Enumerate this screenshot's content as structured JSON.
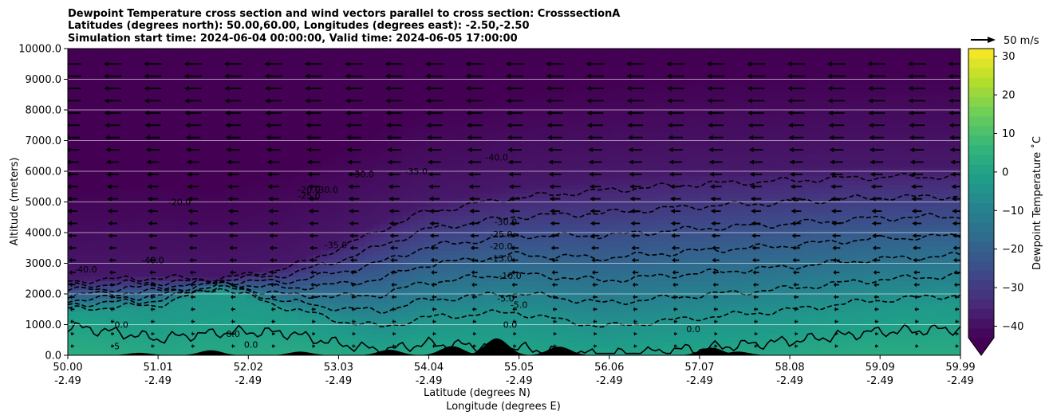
{
  "chart_data": {
    "type": "heatmap",
    "title_lines": [
      "Dewpoint Temperature cross section and wind vectors parallel to cross section: CrosssectionA",
      "Latitudes (degrees north): 50.00,60.00, Longitudes (degrees east): -2.50,-2.50",
      "Simulation start time: 2024-06-04 00:00:00, Valid time: 2024-06-05 17:00:00"
    ],
    "xlabel_lines": [
      "Latitude (degrees N)",
      "Longitude (degrees E)"
    ],
    "ylabel": "Altitude (meters)",
    "colorbar_label": "Dewpoint Temperature ˚C",
    "quiver_key_label": "50 m/s",
    "x_ticks": [
      {
        "lat": "50.00",
        "lon": "-2.49",
        "v": 50.0
      },
      {
        "lat": "51.01",
        "lon": "-2.49",
        "v": 51.01
      },
      {
        "lat": "52.02",
        "lon": "-2.49",
        "v": 52.02
      },
      {
        "lat": "53.03",
        "lon": "-2.49",
        "v": 53.03
      },
      {
        "lat": "54.04",
        "lon": "-2.49",
        "v": 54.04
      },
      {
        "lat": "55.05",
        "lon": "-2.49",
        "v": 55.05
      },
      {
        "lat": "56.06",
        "lon": "-2.49",
        "v": 56.06
      },
      {
        "lat": "57.07",
        "lon": "-2.49",
        "v": 57.07
      },
      {
        "lat": "58.08",
        "lon": "-2.49",
        "v": 58.08
      },
      {
        "lat": "59.09",
        "lon": "-2.49",
        "v": 59.09
      },
      {
        "lat": "59.99",
        "lon": "-2.49",
        "v": 59.99
      }
    ],
    "x_range": [
      50.0,
      59.99
    ],
    "y_ticks": [
      "0.0",
      "1000.0",
      "2000.0",
      "3000.0",
      "4000.0",
      "5000.0",
      "6000.0",
      "7000.0",
      "8000.0",
      "9000.0",
      "10000.0"
    ],
    "y_range": [
      0,
      10000
    ],
    "colorbar_ticks": [
      "−40",
      "−30",
      "−20",
      "−10",
      "0",
      "10",
      "20",
      "30"
    ],
    "colorbar_range": [
      -43,
      32
    ],
    "colorbar_extend": "min",
    "grid": "horizontal",
    "colormap": [
      "#440154",
      "#482878",
      "#3e4989",
      "#31688e",
      "#26828e",
      "#1f9e89",
      "#35b779",
      "#6ece58",
      "#b5de2b",
      "#fde725"
    ],
    "profile_lat": [
      50.0,
      51.0,
      51.7,
      52.5,
      53.1,
      53.5,
      54.0,
      55.0,
      56.0,
      57.0,
      58.0,
      59.0,
      59.99
    ],
    "profile_dewpoint_surface_C": [
      4,
      2,
      2,
      3,
      2,
      1,
      2,
      1,
      0,
      1,
      2,
      3,
      3
    ],
    "profile_moist_top_m": [
      1400,
      1600,
      2200,
      1400,
      1000,
      900,
      1100,
      1400,
      1100,
      1200,
      1300,
      1500,
      1700
    ],
    "profile_dry_base_m": [
      2500,
      2600,
      2500,
      3000,
      3800,
      4400,
      5000,
      5500,
      5800,
      6000,
      6100,
      6200,
      6200
    ],
    "terrain_peaks": [
      {
        "lat": 50.8,
        "h": 80
      },
      {
        "lat": 51.6,
        "h": 160
      },
      {
        "lat": 52.6,
        "h": 120
      },
      {
        "lat": 53.6,
        "h": 180
      },
      {
        "lat": 54.3,
        "h": 300
      },
      {
        "lat": 54.8,
        "h": 550
      },
      {
        "lat": 55.5,
        "h": 280
      },
      {
        "lat": 57.2,
        "h": 250
      },
      {
        "lat": 57.5,
        "h": 120
      }
    ],
    "contour_labels": [
      {
        "text": "0.0",
        "lat": 50.6,
        "alt": 900
      },
      {
        "text": "5",
        "lat": 50.55,
        "alt": 200
      },
      {
        "text": "0.0",
        "lat": 51.85,
        "alt": 600
      },
      {
        "text": "0.0",
        "lat": 52.05,
        "alt": 250
      },
      {
        "text": "0.0",
        "lat": 54.95,
        "alt": 900
      },
      {
        "text": "-5.0",
        "lat": 54.9,
        "alt": 1750
      },
      {
        "text": "-5.0",
        "lat": 55.05,
        "alt": 1550
      },
      {
        "text": "-10.0",
        "lat": 54.95,
        "alt": 2500
      },
      {
        "text": "-15.0",
        "lat": 54.85,
        "alt": 3050
      },
      {
        "text": "-20.0",
        "lat": 54.85,
        "alt": 3450
      },
      {
        "text": "-25.0",
        "lat": 54.85,
        "alt": 3850
      },
      {
        "text": "-30.0",
        "lat": 54.9,
        "alt": 4250
      },
      {
        "text": "-30.0",
        "lat": 53.3,
        "alt": 5800
      },
      {
        "text": "-35.0",
        "lat": 53.0,
        "alt": 3500
      },
      {
        "text": "-35.0",
        "lat": 53.9,
        "alt": 5900
      },
      {
        "text": "-40.0",
        "lat": 54.8,
        "alt": 6350
      },
      {
        "text": "-30.0",
        "lat": 52.9,
        "alt": 5300
      },
      {
        "text": "-25.0",
        "lat": 52.7,
        "alt": 5100
      },
      {
        "text": "-20.0",
        "lat": 52.7,
        "alt": 5300
      },
      {
        "text": "-20.0",
        "lat": 51.25,
        "alt": 4900
      },
      {
        "text": "-40.0",
        "lat": 50.2,
        "alt": 2700
      },
      {
        "text": "-40.0",
        "lat": 50.95,
        "alt": 3000
      },
      {
        "text": "0.0",
        "lat": 57.0,
        "alt": 750
      }
    ],
    "wind_rows_m": [
      300,
      700,
      1100,
      1500,
      1900,
      2300,
      2700,
      3100,
      3500,
      3900,
      4300,
      4700,
      5100,
      5500,
      5900,
      6300,
      6700,
      7100,
      7500,
      7900,
      8300,
      8700,
      9100,
      9500
    ],
    "wind_cols_lat": [
      50.05,
      50.5,
      50.95,
      51.4,
      51.85,
      52.3,
      52.75,
      53.2,
      53.65,
      54.1,
      54.55,
      55.0,
      55.45,
      55.9,
      56.35,
      56.8,
      57.25,
      57.7,
      58.15,
      58.6,
      59.05,
      59.5,
      59.95
    ],
    "wind_speed_profile_ms": [
      {
        "alt": 0,
        "speed": 4
      },
      {
        "alt": 2000,
        "speed": 10
      },
      {
        "alt": 5000,
        "speed": 22
      },
      {
        "alt": 8000,
        "speed": 34
      },
      {
        "alt": 10000,
        "speed": 38
      }
    ]
  }
}
